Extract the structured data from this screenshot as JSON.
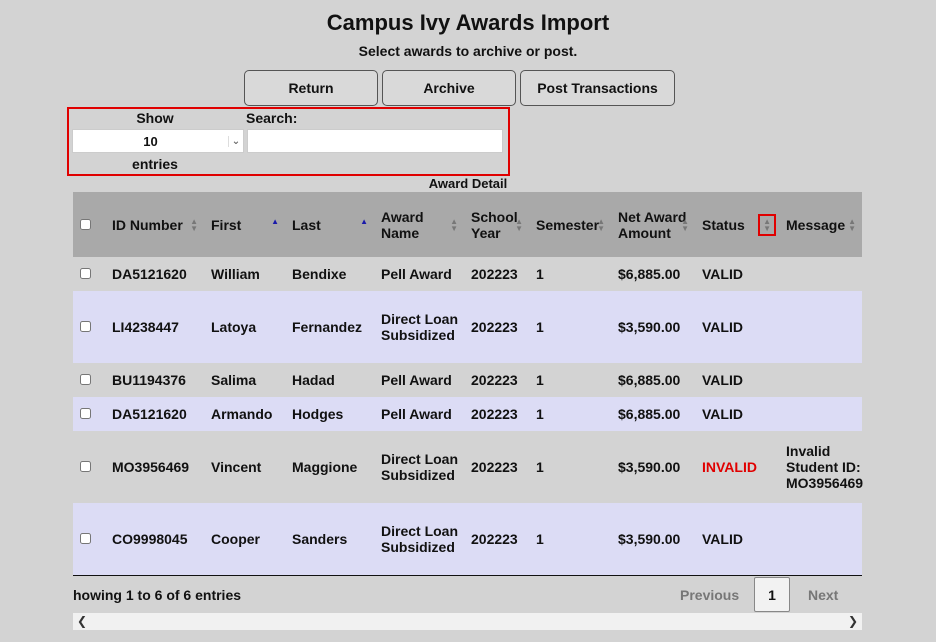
{
  "header": {
    "title": "Campus Ivy Awards Import",
    "subtitle": "Select awards to archive or post."
  },
  "toolbar": {
    "return_label": "Return",
    "archive_label": "Archive",
    "post_label": "Post Transactions"
  },
  "length_control": {
    "show_label": "Show",
    "value": "10",
    "entries_label": "entries"
  },
  "search": {
    "label": "Search:",
    "value": ""
  },
  "table": {
    "caption": "Award Detail",
    "columns": [
      "ID Number",
      "First",
      "Last",
      "Award Name",
      "School Year",
      "Semester",
      "Net Award Amount",
      "Status",
      "Message"
    ],
    "rows": [
      {
        "id": "DA5121620",
        "first": "William",
        "last": "Bendixe",
        "award": "Pell Award",
        "year": "202223",
        "semester": "1",
        "amount": "$6,885.00",
        "status": "VALID",
        "message": ""
      },
      {
        "id": "LI4238447",
        "first": "Latoya",
        "last": "Fernandez",
        "award": "Direct Loan Subsidized",
        "year": "202223",
        "semester": "1",
        "amount": "$3,590.00",
        "status": "VALID",
        "message": ""
      },
      {
        "id": "BU1194376",
        "first": "Salima",
        "last": "Hadad",
        "award": "Pell Award",
        "year": "202223",
        "semester": "1",
        "amount": "$6,885.00",
        "status": "VALID",
        "message": ""
      },
      {
        "id": "DA5121620",
        "first": "Armando",
        "last": "Hodges",
        "award": "Pell Award",
        "year": "202223",
        "semester": "1",
        "amount": "$6,885.00",
        "status": "VALID",
        "message": ""
      },
      {
        "id": "MO3956469",
        "first": "Vincent",
        "last": "Maggione",
        "award": "Direct Loan Subsidized",
        "year": "202223",
        "semester": "1",
        "amount": "$3,590.00",
        "status": "INVALID",
        "message": "Invalid Student ID: MO3956469"
      },
      {
        "id": "CO9998045",
        "first": "Cooper",
        "last": "Sanders",
        "award": "Direct Loan Subsidized",
        "year": "202223",
        "semester": "1",
        "amount": "$3,590.00",
        "status": "VALID",
        "message": ""
      }
    ]
  },
  "footer": {
    "info": "howing 1 to 6 of 6 entries",
    "previous": "Previous",
    "page": "1",
    "next": "Next"
  },
  "colors": {
    "background": "#d3d3d3",
    "header_bg": "#a9a9a9",
    "row_alt": "#dcdcf5",
    "invalid": "#e00000",
    "highlight": "#e00000"
  },
  "icons": {
    "sort": "sort-arrows-icon",
    "chevron": "chevron-down-icon",
    "scroll_left": "scroll-left-icon",
    "scroll_right": "scroll-right-icon"
  }
}
